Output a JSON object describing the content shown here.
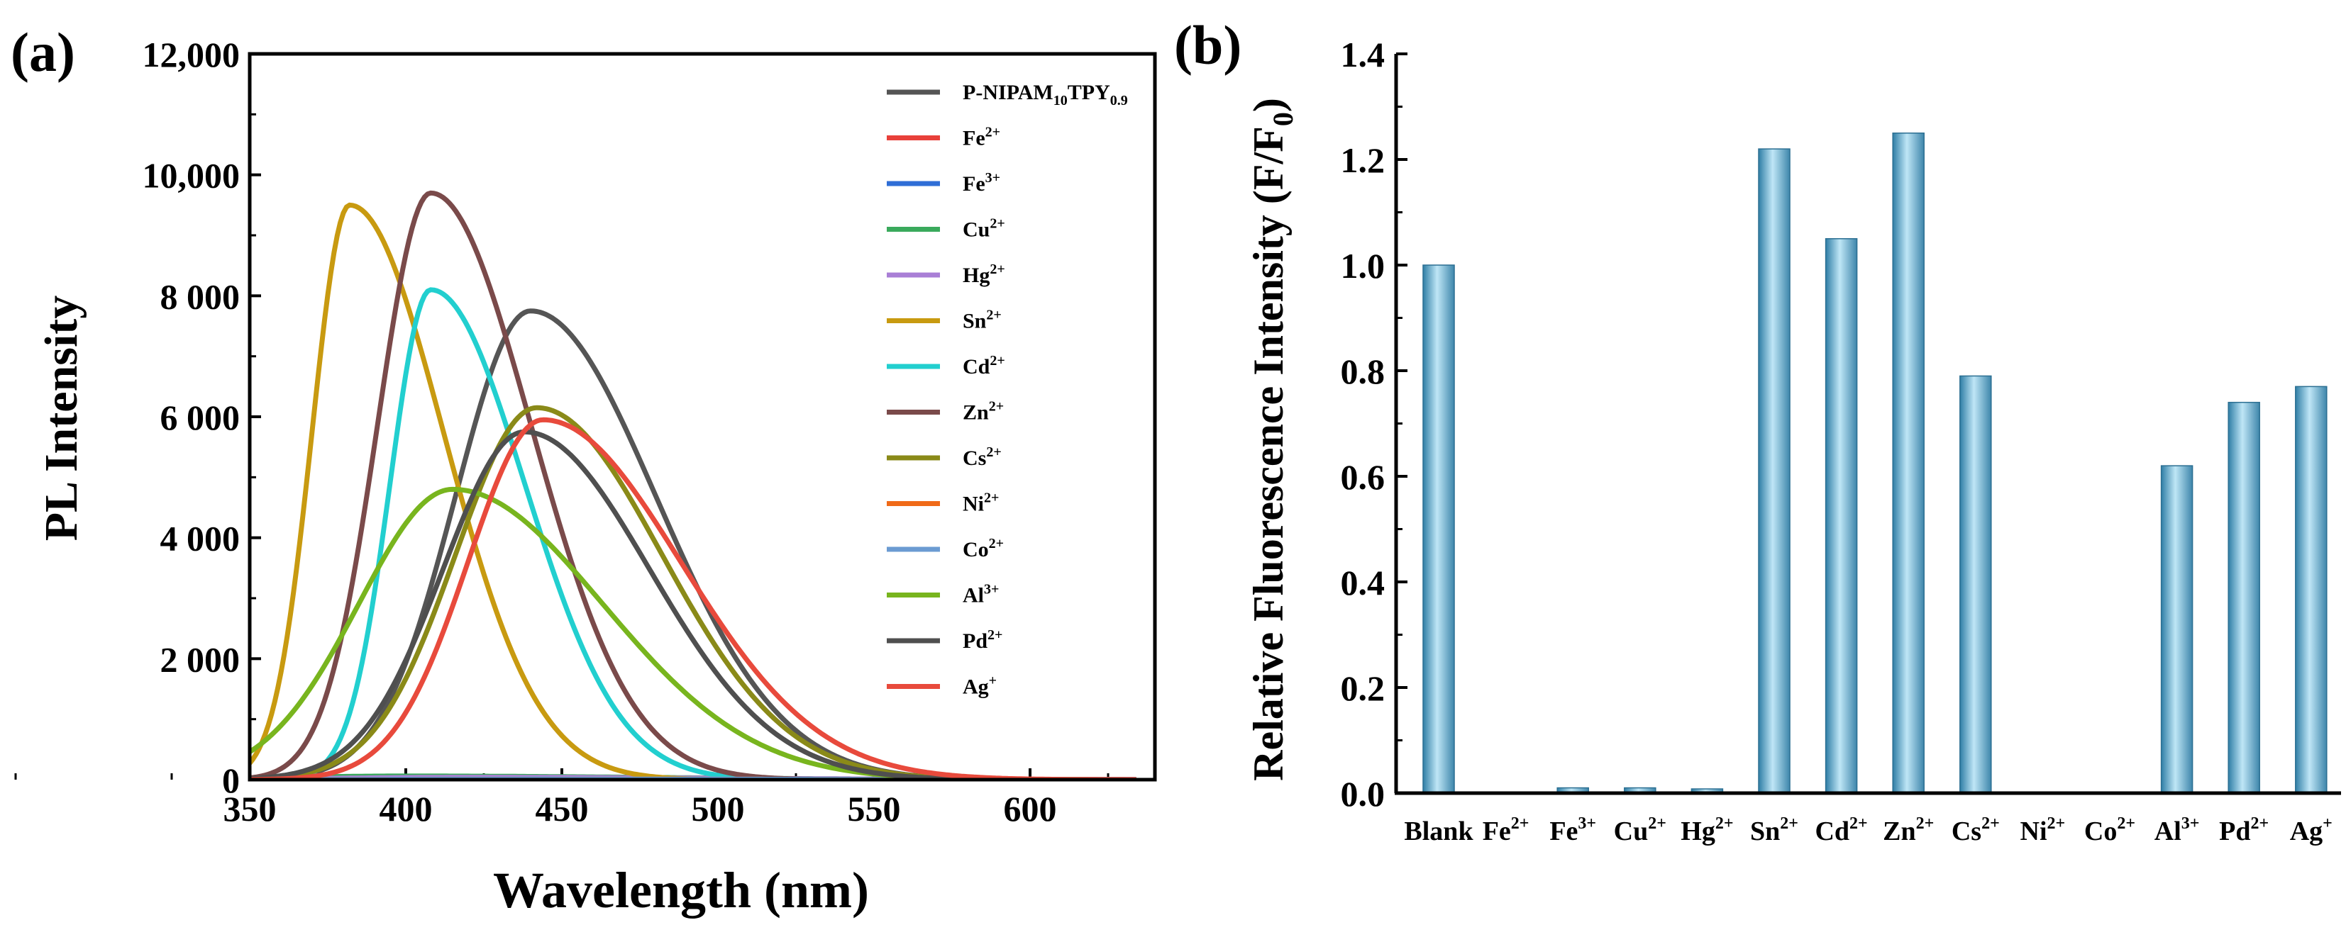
{
  "panels": {
    "a": {
      "label": "(a)",
      "chart_data": {
        "type": "line",
        "title": "",
        "xlabel": "Wavelength (nm)",
        "ylabel": "PL Intensity",
        "xlim": [
          350,
          640
        ],
        "ylim": [
          0,
          12000
        ],
        "x_ticks": [
          350,
          400,
          450,
          500,
          550,
          600
        ],
        "x_tick_labels": [
          "350",
          "400",
          "450",
          "500",
          "550",
          "600"
        ],
        "y_ticks": [
          0,
          2000,
          4000,
          6000,
          8000,
          10000,
          12000
        ],
        "y_tick_labels": [
          "0",
          "2 000",
          "4 000",
          "6 000",
          "8 000",
          "10,000",
          "12,000"
        ],
        "legend_position": "top-right",
        "series": [
          {
            "name": "P-NIPAM10TPY0.9",
            "legend": {
              "base": "P-NIPAM",
              "s1": "10",
              "mid": "TPY",
              "s2": "0.9"
            },
            "color": "#555555",
            "peak_x": 440,
            "peak_y": 7750,
            "width_left": 24,
            "width_right": 40
          },
          {
            "name": "Fe2+",
            "legend": {
              "base": "Fe",
              "sup": "2+"
            },
            "color": "#e8403a",
            "peak_x": 440,
            "peak_y": 20,
            "width_left": 40,
            "width_right": 80
          },
          {
            "name": "Fe3+",
            "legend": {
              "base": "Fe",
              "sup": "3+"
            },
            "color": "#2f6ed6",
            "peak_x": 440,
            "peak_y": 20,
            "width_left": 40,
            "width_right": 80
          },
          {
            "name": "Cu2+",
            "legend": {
              "base": "Cu",
              "sup": "2+"
            },
            "color": "#3aaa5c",
            "peak_x": 400,
            "peak_y": 60,
            "width_left": 40,
            "width_right": 80
          },
          {
            "name": "Hg2+",
            "legend": {
              "base": "Hg",
              "sup": "2+"
            },
            "color": "#a97fd6",
            "peak_x": 420,
            "peak_y": 40,
            "width_left": 40,
            "width_right": 80
          },
          {
            "name": "Sn2+",
            "legend": {
              "base": "Sn",
              "sup": "2+"
            },
            "color": "#c89a10",
            "peak_x": 382,
            "peak_y": 9500,
            "width_left": 12,
            "width_right": 30
          },
          {
            "name": "Cd2+",
            "legend": {
              "base": "Cd",
              "sup": "2+"
            },
            "color": "#22cfcf",
            "peak_x": 408,
            "peak_y": 8100,
            "width_left": 13,
            "width_right": 30
          },
          {
            "name": "Zn2+",
            "legend": {
              "base": "Zn",
              "sup": "2+"
            },
            "color": "#7a4a4a",
            "peak_x": 408,
            "peak_y": 9700,
            "width_left": 17,
            "width_right": 32
          },
          {
            "name": "Cs2+",
            "legend": {
              "base": "Cs",
              "sup": "2+"
            },
            "color": "#8a8a18",
            "peak_x": 442,
            "peak_y": 6150,
            "width_left": 26,
            "width_right": 40
          },
          {
            "name": "Ni2+",
            "legend": {
              "base": "Ni",
              "sup": "2+"
            },
            "color": "#f06a18",
            "peak_x": 440,
            "peak_y": 10,
            "width_left": 40,
            "width_right": 80
          },
          {
            "name": "Co2+",
            "legend": {
              "base": "Co",
              "sup": "2+"
            },
            "color": "#6b9bd2",
            "peak_x": 440,
            "peak_y": 10,
            "width_left": 40,
            "width_right": 80
          },
          {
            "name": "Al3+",
            "legend": {
              "base": "Al",
              "sup": "3+"
            },
            "color": "#78b51e",
            "peak_x": 415,
            "peak_y": 4800,
            "width_left": 30,
            "width_right": 48
          },
          {
            "name": "Pd2+",
            "legend": {
              "base": "Pd",
              "sup": "2+"
            },
            "color": "#4f4f4f",
            "peak_x": 438,
            "peak_y": 5750,
            "width_left": 26,
            "width_right": 40
          },
          {
            "name": "Ag+",
            "legend": {
              "base": "Ag",
              "sup": "+"
            },
            "color": "#e84a3c",
            "peak_x": 444,
            "peak_y": 5950,
            "width_left": 24,
            "width_right": 44
          }
        ]
      }
    },
    "b": {
      "label": "(b)",
      "chart_data": {
        "type": "bar",
        "title": "",
        "xlabel": "",
        "ylabel": "Relative Fluorescence Intensity (F/F0)",
        "ylabel_parts": {
          "main": "Relative Fluorescence Intensity (F/F",
          "sub": "0",
          "end": ")"
        },
        "ylim": [
          0,
          1.4
        ],
        "y_ticks": [
          0.0,
          0.2,
          0.4,
          0.6,
          0.8,
          1.0,
          1.2,
          1.4
        ],
        "y_tick_labels": [
          "0.0",
          "0.2",
          "0.4",
          "0.6",
          "0.8",
          "1.0",
          "1.2",
          "1.4"
        ],
        "categories": [
          "Blank",
          "Fe2+",
          "Fe3+",
          "Cu2+",
          "Hg2+",
          "Sn2+",
          "Cd2+",
          "Zn2+",
          "Cs2+",
          "Ni2+",
          "Co2+",
          "Al3+",
          "Pd2+",
          "Ag+"
        ],
        "category_labels": [
          {
            "base": "Blank",
            "sup": ""
          },
          {
            "base": "Fe",
            "sup": "2+"
          },
          {
            "base": "Fe",
            "sup": "3+"
          },
          {
            "base": "Cu",
            "sup": "2+"
          },
          {
            "base": "Hg",
            "sup": "2+"
          },
          {
            "base": "Sn",
            "sup": "2+"
          },
          {
            "base": "Cd",
            "sup": "2+"
          },
          {
            "base": "Zn",
            "sup": "2+"
          },
          {
            "base": "Cs",
            "sup": "2+"
          },
          {
            "base": "Ni",
            "sup": "2+"
          },
          {
            "base": "Co",
            "sup": "2+"
          },
          {
            "base": "Al",
            "sup": "3+"
          },
          {
            "base": "Pd",
            "sup": "2+"
          },
          {
            "base": "Ag",
            "sup": "+"
          }
        ],
        "values": [
          1.0,
          0.0,
          0.01,
          0.01,
          0.008,
          1.22,
          1.05,
          1.25,
          0.79,
          0.0,
          0.0,
          0.62,
          0.74,
          0.77
        ],
        "bar_color": "#5aa9cf"
      }
    }
  }
}
